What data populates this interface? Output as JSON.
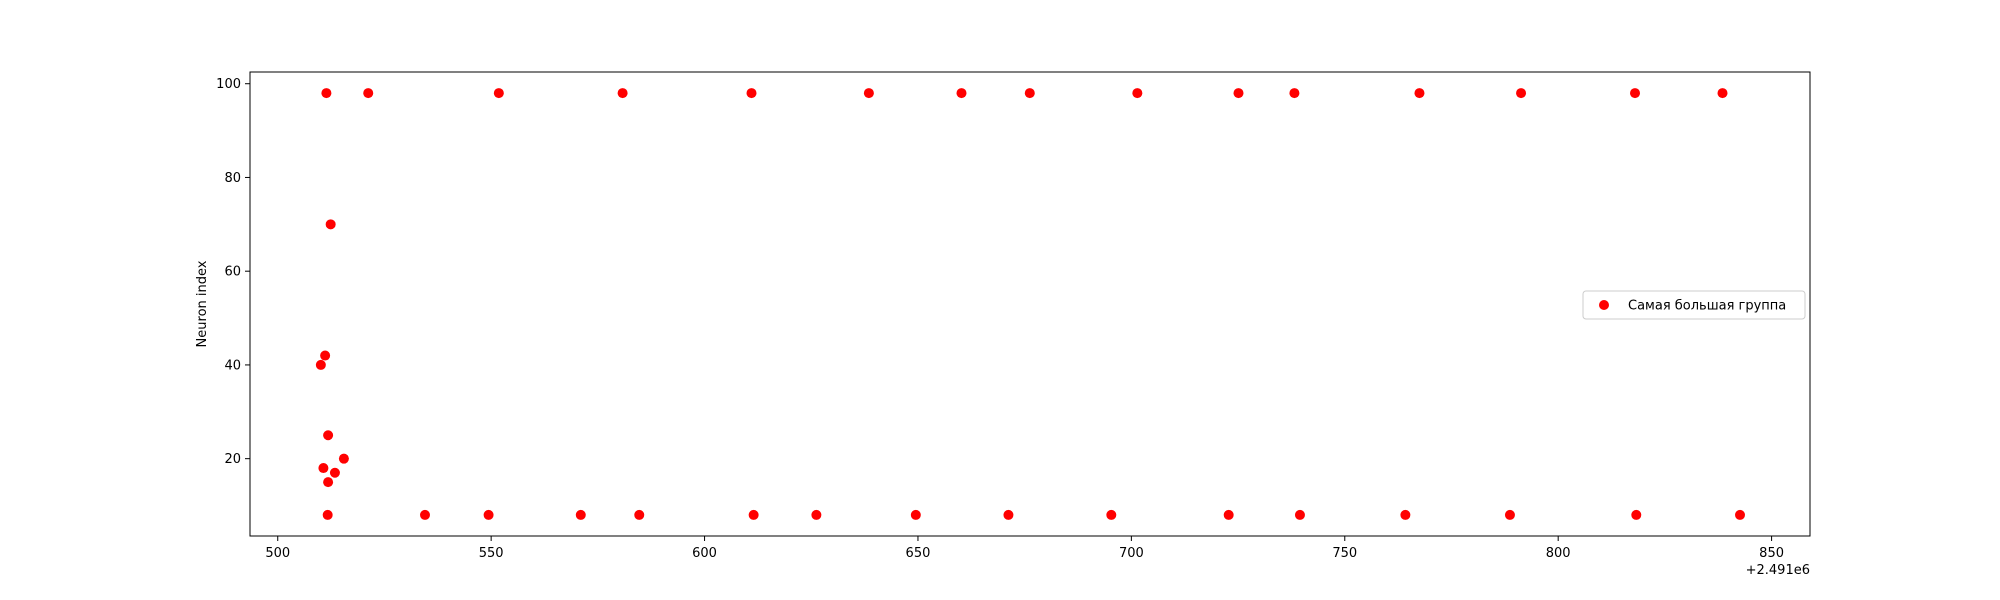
{
  "chart_data": {
    "type": "scatter",
    "title": "",
    "xlabel": "",
    "ylabel": "Neuron index",
    "x_offset_label": "+2.491e6",
    "xlim": [
      493.5,
      859
    ],
    "ylim": [
      3.5,
      102.5
    ],
    "xticks": [
      500,
      550,
      600,
      650,
      700,
      750,
      800,
      850
    ],
    "yticks": [
      20,
      40,
      60,
      80,
      100
    ],
    "grid": false,
    "legend_position": "center-right",
    "series": [
      {
        "name": "Самая большая группа",
        "color": "#ff0000",
        "points": [
          {
            "x": 511.4,
            "y": 98
          },
          {
            "x": 521.2,
            "y": 98
          },
          {
            "x": 551.8,
            "y": 98
          },
          {
            "x": 580.8,
            "y": 98
          },
          {
            "x": 611.0,
            "y": 98
          },
          {
            "x": 638.5,
            "y": 98
          },
          {
            "x": 660.2,
            "y": 98
          },
          {
            "x": 676.2,
            "y": 98
          },
          {
            "x": 701.4,
            "y": 98
          },
          {
            "x": 725.1,
            "y": 98
          },
          {
            "x": 738.2,
            "y": 98
          },
          {
            "x": 767.5,
            "y": 98
          },
          {
            "x": 791.3,
            "y": 98
          },
          {
            "x": 818.0,
            "y": 98
          },
          {
            "x": 838.5,
            "y": 98
          },
          {
            "x": 512.4,
            "y": 70
          },
          {
            "x": 511.1,
            "y": 42
          },
          {
            "x": 510.1,
            "y": 40
          },
          {
            "x": 511.8,
            "y": 25
          },
          {
            "x": 515.5,
            "y": 20
          },
          {
            "x": 510.7,
            "y": 18
          },
          {
            "x": 513.4,
            "y": 17
          },
          {
            "x": 511.8,
            "y": 15
          },
          {
            "x": 511.7,
            "y": 8
          },
          {
            "x": 534.5,
            "y": 8
          },
          {
            "x": 549.4,
            "y": 8
          },
          {
            "x": 571.0,
            "y": 8
          },
          {
            "x": 584.7,
            "y": 8
          },
          {
            "x": 611.5,
            "y": 8
          },
          {
            "x": 626.2,
            "y": 8
          },
          {
            "x": 649.5,
            "y": 8
          },
          {
            "x": 671.2,
            "y": 8
          },
          {
            "x": 695.3,
            "y": 8
          },
          {
            "x": 722.8,
            "y": 8
          },
          {
            "x": 739.5,
            "y": 8
          },
          {
            "x": 764.2,
            "y": 8
          },
          {
            "x": 788.7,
            "y": 8
          },
          {
            "x": 818.3,
            "y": 8
          },
          {
            "x": 842.6,
            "y": 8
          }
        ]
      }
    ]
  }
}
